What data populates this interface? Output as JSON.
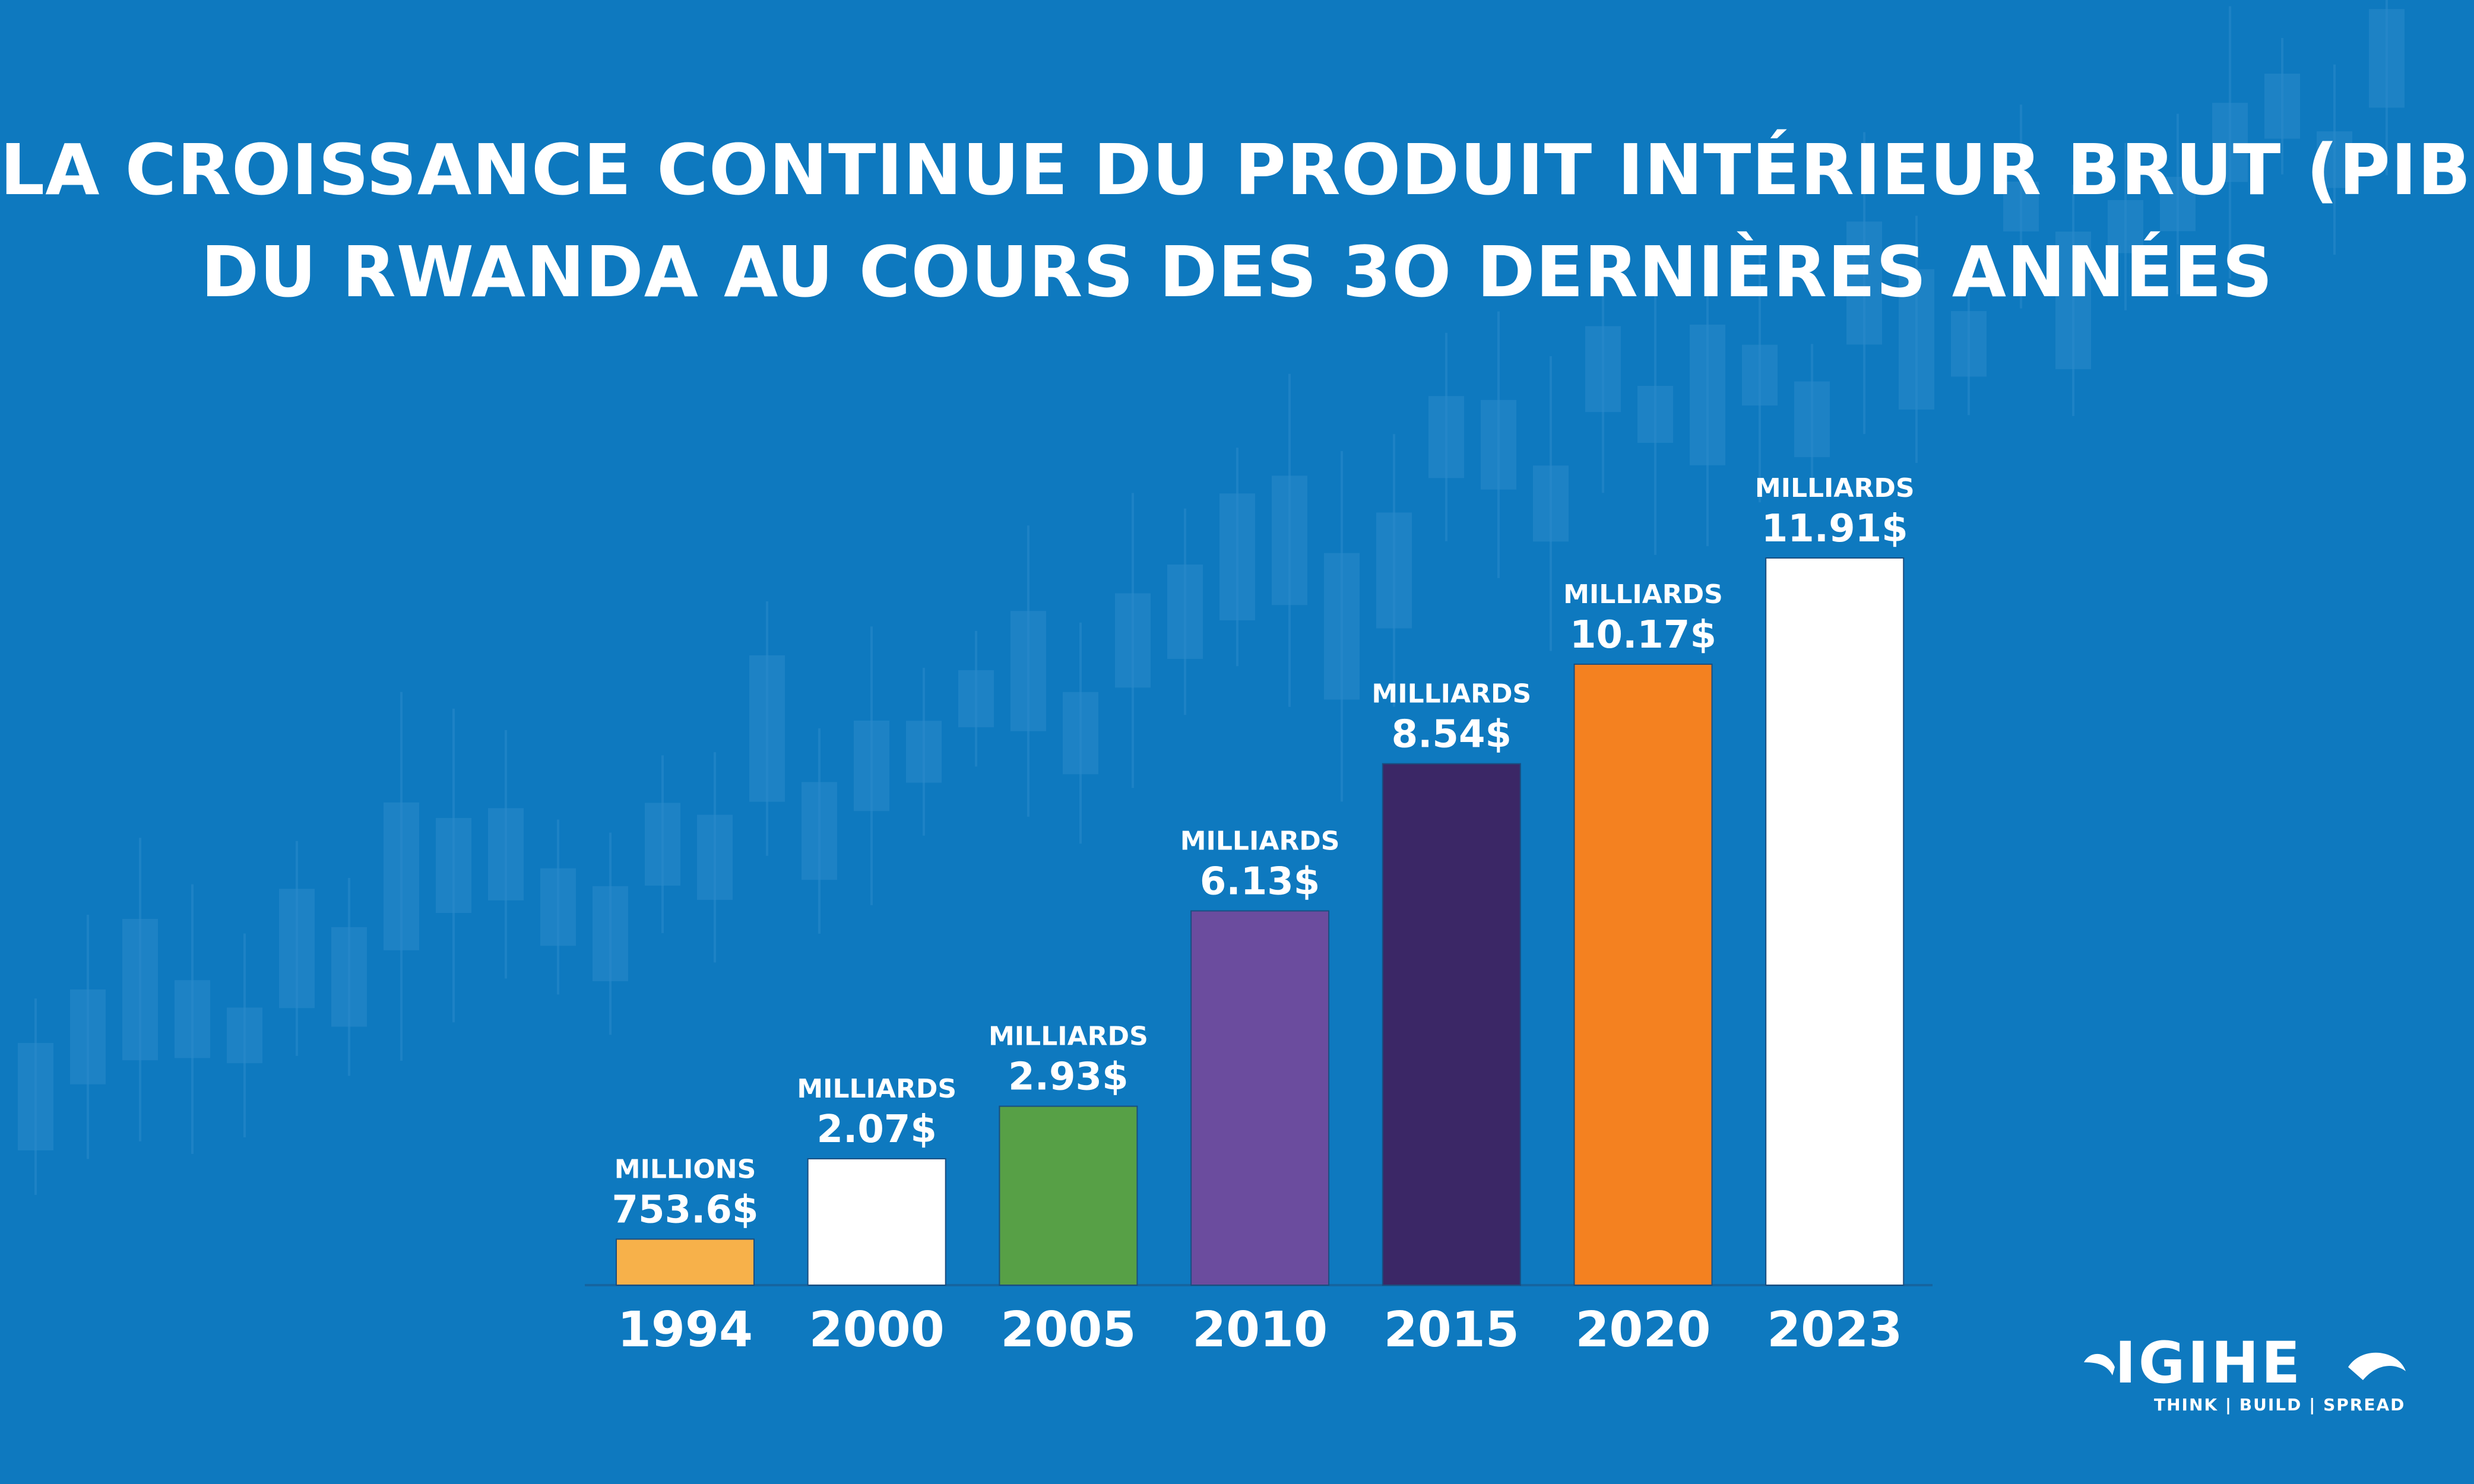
{
  "title_lines": [
    "LA CROISSANCE CONTINUE DU PRODUIT INTÉRIEUR BRUT (PIB)",
    "DU RWANDA AU COURS DES 3O DERNIÈRES ANNÉES"
  ],
  "chart_data": {
    "type": "bar",
    "title": "LA CROISSANCE CONTINUE DU PRODUIT INTÉRIEUR BRUT (PIB) DU RWANDA AU COURS DES 3O DERNIÈRES ANNÉES",
    "categories": [
      "1994",
      "2000",
      "2005",
      "2010",
      "2015",
      "2020",
      "2023"
    ],
    "values": [
      0.7536,
      2.07,
      2.93,
      6.13,
      8.54,
      10.17,
      11.91
    ],
    "units": [
      "MILLIONS",
      "MILLIARDS",
      "MILLIARDS",
      "MILLIARDS",
      "MILLIARDS",
      "MILLIARDS",
      "MILLIARDS"
    ],
    "labels": [
      "753.6$",
      "2.07$",
      "2.93$",
      "6.13$",
      "8.54$",
      "10.17$",
      "11.91$"
    ],
    "colors": [
      "#F7B14A",
      "#FFFFFF",
      "#57A046",
      "#6B4C9E",
      "#3B2766",
      "#F48120",
      "#FFFFFF"
    ],
    "xlabel": "",
    "ylabel": "",
    "legend": "none",
    "grid": false
  },
  "logo": {
    "word": "IGIHE",
    "tagline": "THINK | BUILD | SPREAD"
  },
  "colors": {
    "background": "#0E79BF",
    "text": "#FFFFFF"
  }
}
